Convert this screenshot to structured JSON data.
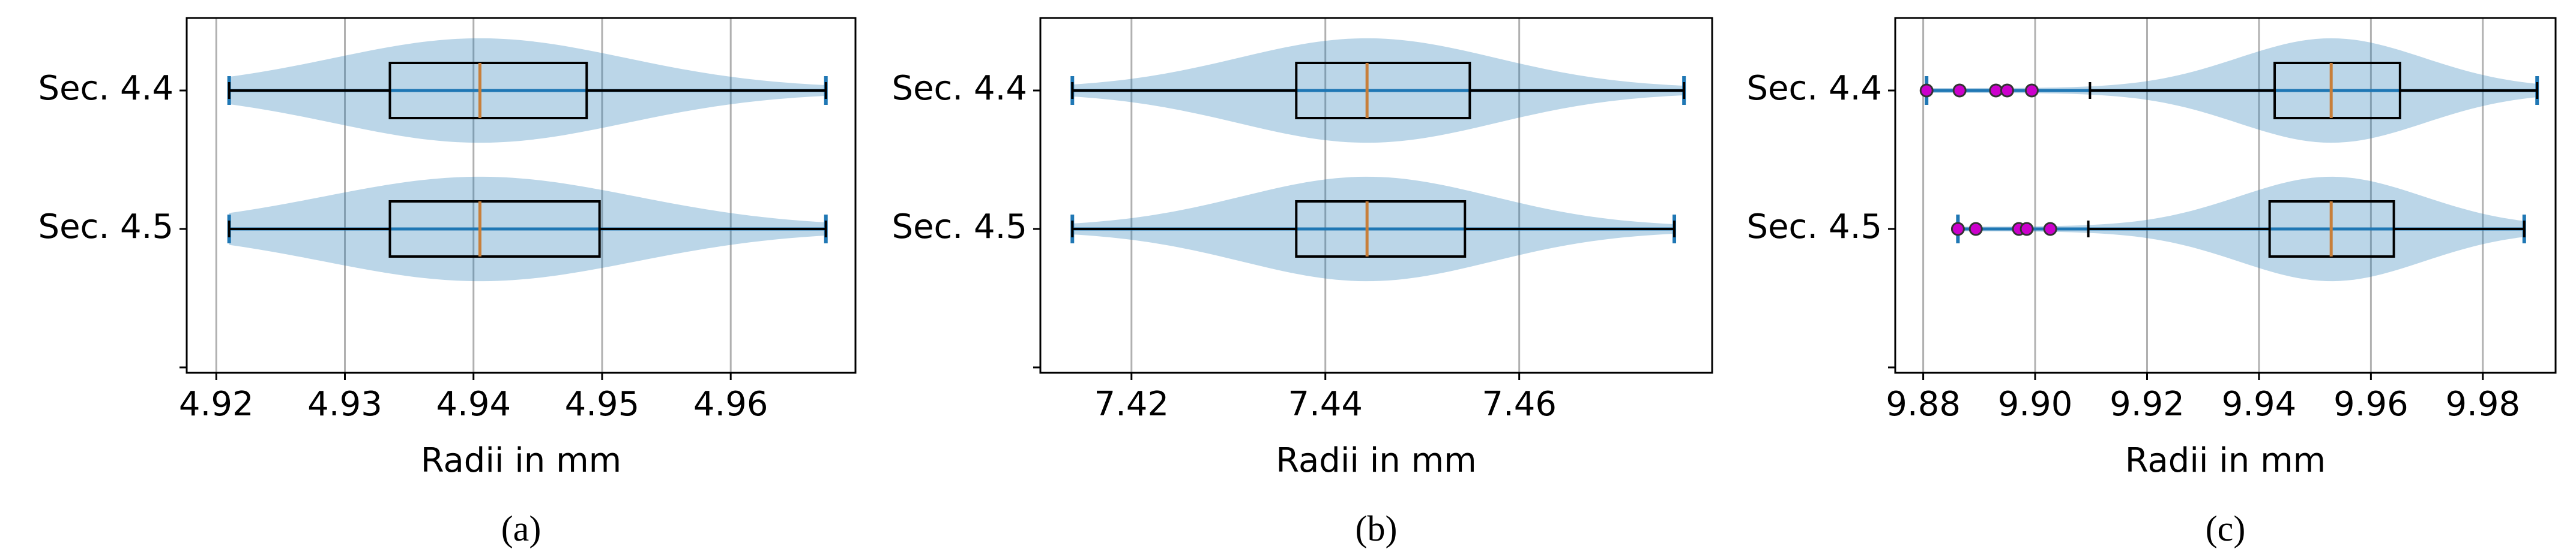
{
  "chart_data": [
    {
      "type": "box",
      "caption": "(a)",
      "xlabel": "Radii in mm",
      "categories": [
        "Sec. 4.4",
        "Sec. 4.5",
        null
      ],
      "whislo": [
        4.921,
        4.921,
        null
      ],
      "q1": [
        4.9335,
        4.9335,
        null
      ],
      "med": [
        4.9405,
        4.9405,
        null
      ],
      "q3": [
        4.9488,
        4.9498,
        null
      ],
      "whishi": [
        4.9674,
        4.9674,
        null
      ],
      "fliers": [
        [],
        [],
        null
      ],
      "xlim": [
        4.9177,
        4.9697
      ],
      "xticks": [
        4.92,
        4.93,
        4.94,
        4.95,
        4.96
      ],
      "grid": true,
      "box_color": "#000000",
      "median_color": "#c87f3a",
      "violin_color": "#1f77b4",
      "flier_color": "#cc00cc"
    },
    {
      "type": "box",
      "caption": "(b)",
      "xlabel": "Radii in mm",
      "categories": [
        "Sec. 4.4",
        "Sec. 4.5",
        null
      ],
      "whislo": [
        7.4139,
        7.4139,
        null
      ],
      "q1": [
        7.437,
        7.437,
        null
      ],
      "med": [
        7.4443,
        7.4443,
        null
      ],
      "q3": [
        7.4549,
        7.4544,
        null
      ],
      "whishi": [
        7.477,
        7.476,
        null
      ],
      "fliers": [
        [],
        [],
        null
      ],
      "xlim": [
        7.4106,
        7.4799
      ],
      "xticks": [
        7.42,
        7.44,
        7.46
      ],
      "grid": true,
      "box_color": "#000000",
      "median_color": "#c87f3a",
      "violin_color": "#1f77b4",
      "flier_color": "#cc00cc"
    },
    {
      "type": "box",
      "caption": "(c)",
      "xlabel": "Radii in mm",
      "categories": [
        "Sec. 4.4",
        "Sec. 4.5",
        null
      ],
      "whislo": [
        9.9098,
        9.9095,
        null
      ],
      "q1": [
        9.9428,
        9.9419,
        null
      ],
      "med": [
        9.9529,
        9.9529,
        null
      ],
      "q3": [
        9.9652,
        9.9641,
        null
      ],
      "whishi": [
        9.9897,
        9.9874,
        null
      ],
      "fliers": [
        [
          9.8806,
          9.8865,
          9.893,
          9.895,
          9.8994
        ],
        [
          9.8862,
          9.8894,
          9.8971,
          9.8985,
          9.9027
        ],
        null
      ],
      "xlim": [
        9.875,
        9.993
      ],
      "xticks": [
        9.88,
        {
          "value": 9.9,
          "label": "9.90"
        },
        9.92,
        9.94,
        9.96,
        9.98
      ],
      "grid": true,
      "box_color": "#000000",
      "median_color": "#c87f3a",
      "violin_color": "#1f77b4",
      "flier_color": "#cc00cc"
    }
  ]
}
